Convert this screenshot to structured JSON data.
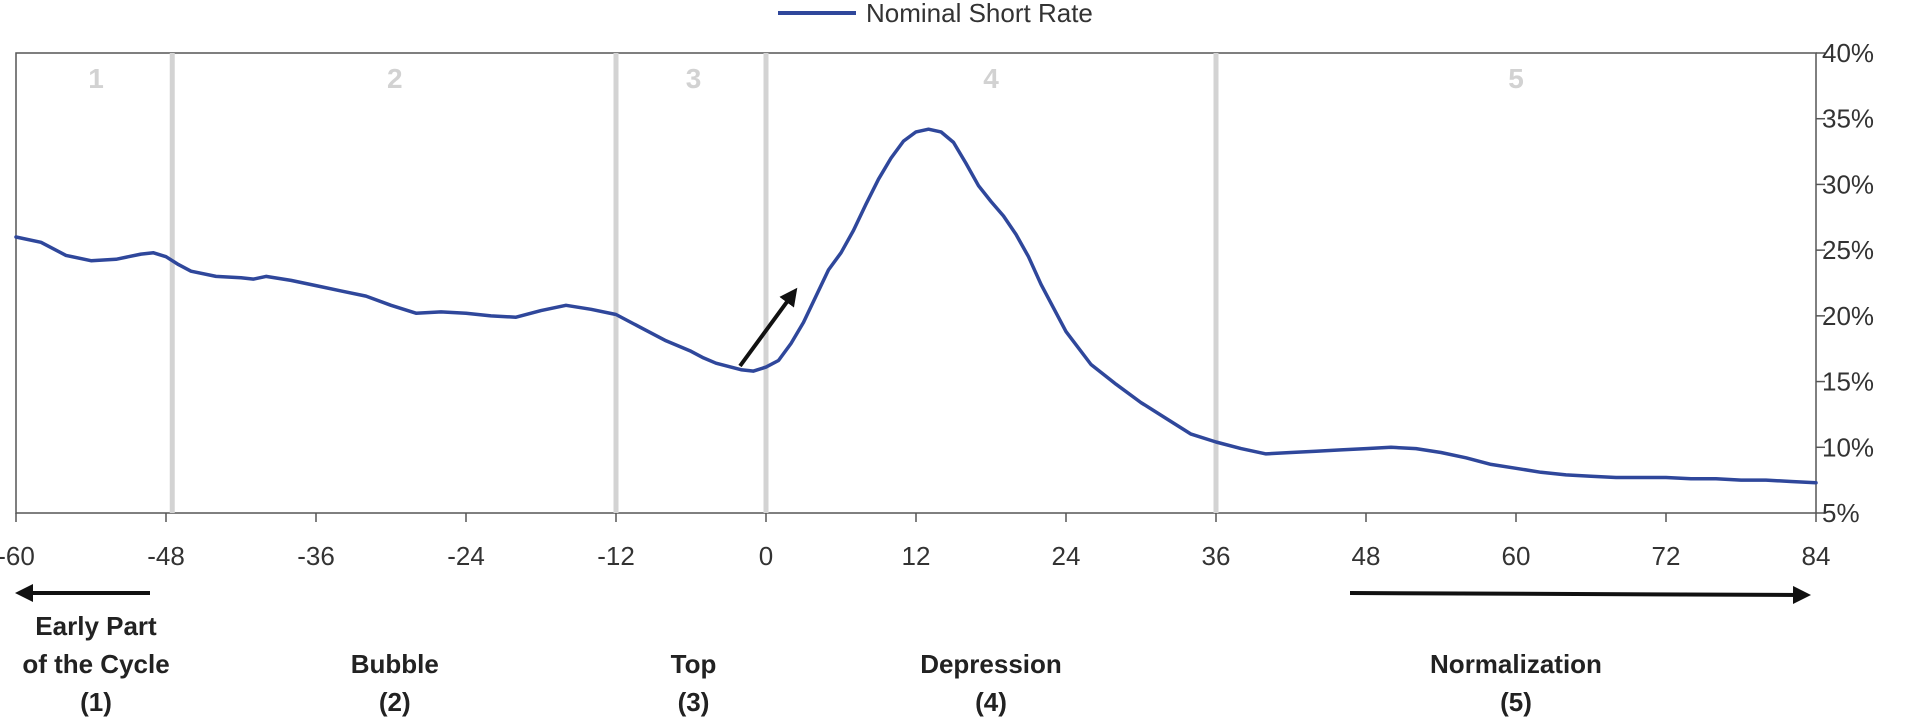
{
  "legend": {
    "series_label": "Nominal Short Rate"
  },
  "colors": {
    "series": "#2f479b",
    "divider": "#d3d3d3",
    "axis": "#555555",
    "phase_number": "#d2d2d2",
    "arrow": "#111111"
  },
  "phases": [
    {
      "number": "1",
      "caption_lines": [
        "Early Part",
        "of the Cycle",
        "(1)"
      ]
    },
    {
      "number": "2",
      "caption_lines": [
        "Bubble",
        "(2)"
      ]
    },
    {
      "number": "3",
      "caption_lines": [
        "Top",
        "(3)"
      ]
    },
    {
      "number": "4",
      "caption_lines": [
        "Depression",
        "(4)"
      ]
    },
    {
      "number": "5",
      "caption_lines": [
        "Normalization",
        "(5)"
      ]
    }
  ],
  "chart_data": {
    "type": "line",
    "title": "",
    "xlabel": "",
    "ylabel": "",
    "xlim": [
      -60,
      84
    ],
    "ylim": [
      5,
      40
    ],
    "x_ticks": [
      -60,
      -48,
      -36,
      -24,
      -12,
      0,
      12,
      24,
      36,
      48,
      60,
      72,
      84
    ],
    "x_tick_labels": [
      "-60",
      "-48",
      "-36",
      "-24",
      "-12",
      "0",
      "12",
      "24",
      "36",
      "48",
      "60",
      "72",
      "84"
    ],
    "y_ticks": [
      5,
      10,
      15,
      20,
      25,
      30,
      35,
      40
    ],
    "y_tick_labels": [
      "5%",
      "10%",
      "15%",
      "20%",
      "25%",
      "30%",
      "35%",
      "40%"
    ],
    "y_axis_side": "right",
    "legend_position": "top-center",
    "phase_boundaries": [
      -47.5,
      -12,
      0,
      36
    ],
    "phase_centers": [
      -53.6,
      -29.7,
      -5.8,
      18,
      60
    ],
    "series": [
      {
        "name": "Nominal Short Rate",
        "x": [
          -60,
          -58,
          -56,
          -54,
          -52,
          -50,
          -49,
          -48,
          -47,
          -46,
          -44,
          -42,
          -41,
          -40,
          -38,
          -36,
          -34,
          -32,
          -30,
          -28,
          -26,
          -24,
          -22,
          -20,
          -18,
          -16,
          -14,
          -12,
          -10,
          -8,
          -6,
          -5,
          -4,
          -2,
          -1,
          0,
          1,
          2,
          3,
          4,
          5,
          6,
          7,
          8,
          9,
          10,
          11,
          12,
          13,
          14,
          15,
          16,
          17,
          18,
          19,
          20,
          21,
          22,
          24,
          26,
          28,
          30,
          32,
          34,
          36,
          38,
          40,
          42,
          44,
          46,
          48,
          50,
          52,
          54,
          56,
          58,
          60,
          62,
          64,
          66,
          68,
          70,
          72,
          74,
          76,
          78,
          80,
          82,
          84
        ],
        "y": [
          26.0,
          25.6,
          24.6,
          24.2,
          24.3,
          24.7,
          24.8,
          24.5,
          23.9,
          23.4,
          23.0,
          22.9,
          22.8,
          23.0,
          22.7,
          22.3,
          21.9,
          21.5,
          20.8,
          20.2,
          20.3,
          20.2,
          20.0,
          19.9,
          20.4,
          20.8,
          20.5,
          20.1,
          19.1,
          18.1,
          17.3,
          16.8,
          16.4,
          15.9,
          15.8,
          16.1,
          16.6,
          17.9,
          19.5,
          21.5,
          23.5,
          24.8,
          26.5,
          28.5,
          30.4,
          32.0,
          33.3,
          34.0,
          34.2,
          34.0,
          33.2,
          31.6,
          29.9,
          28.7,
          27.6,
          26.2,
          24.5,
          22.4,
          18.8,
          16.3,
          14.8,
          13.4,
          12.2,
          11.0,
          10.4,
          9.9,
          9.5,
          9.6,
          9.7,
          9.8,
          9.9,
          10.0,
          9.9,
          9.6,
          9.2,
          8.7,
          8.4,
          8.1,
          7.9,
          7.8,
          7.7,
          7.7,
          7.7,
          7.6,
          7.6,
          7.5,
          7.5,
          7.4,
          7.3
        ]
      }
    ]
  }
}
